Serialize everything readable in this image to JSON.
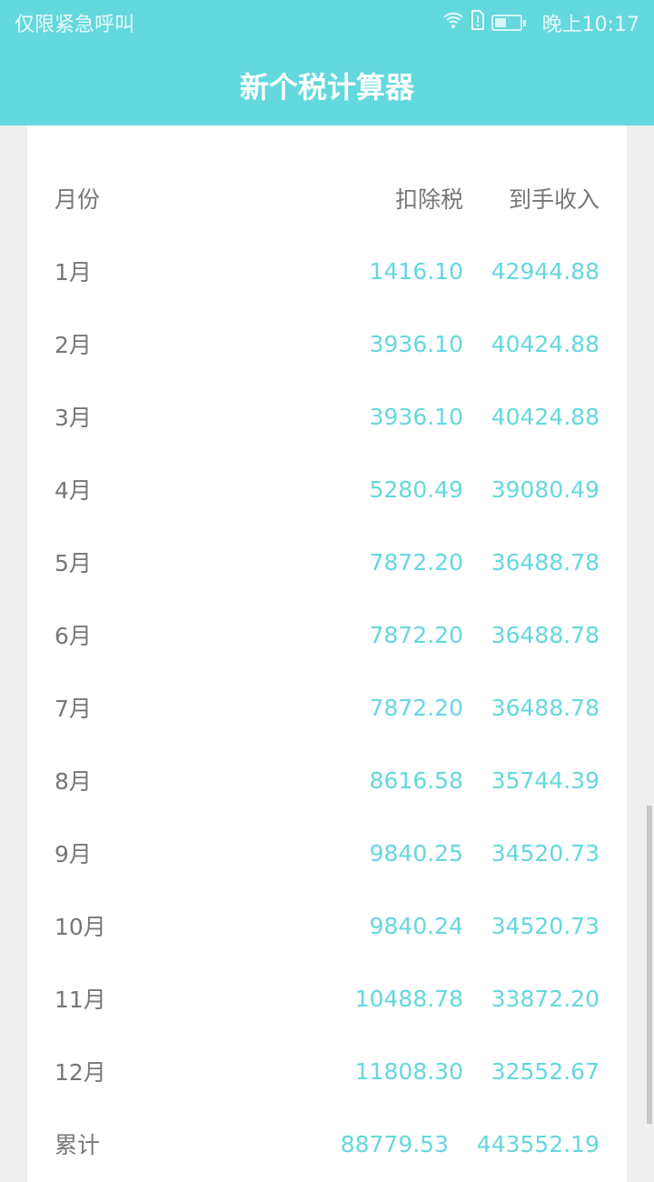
{
  "status_bar": {
    "carrier": "仅限紧急呼叫",
    "time": "晚上10:17",
    "icons": [
      "wifi-icon",
      "sim-alert-icon",
      "battery-icon"
    ]
  },
  "app_bar": {
    "title": "新个税计算器"
  },
  "table": {
    "headers": {
      "month": "月份",
      "tax": "扣除税",
      "income": "到手收入"
    },
    "rows": [
      {
        "month": "1月",
        "tax": "1416.10",
        "income": "42944.88"
      },
      {
        "month": "2月",
        "tax": "3936.10",
        "income": "40424.88"
      },
      {
        "month": "3月",
        "tax": "3936.10",
        "income": "40424.88"
      },
      {
        "month": "4月",
        "tax": "5280.49",
        "income": "39080.49"
      },
      {
        "month": "5月",
        "tax": "7872.20",
        "income": "36488.78"
      },
      {
        "month": "6月",
        "tax": "7872.20",
        "income": "36488.78"
      },
      {
        "month": "7月",
        "tax": "7872.20",
        "income": "36488.78"
      },
      {
        "month": "8月",
        "tax": "8616.58",
        "income": "35744.39"
      },
      {
        "month": "9月",
        "tax": "9840.25",
        "income": "34520.73"
      },
      {
        "month": "10月",
        "tax": "9840.24",
        "income": "34520.73"
      },
      {
        "month": "11月",
        "tax": "10488.78",
        "income": "33872.20"
      },
      {
        "month": "12月",
        "tax": "11808.30",
        "income": "32552.67"
      }
    ],
    "total": {
      "month": "累计",
      "tax": "88779.53",
      "income": "443552.19"
    }
  },
  "colors": {
    "accent": "#63d8dd",
    "value": "#66d7dd",
    "label": "#777777"
  }
}
